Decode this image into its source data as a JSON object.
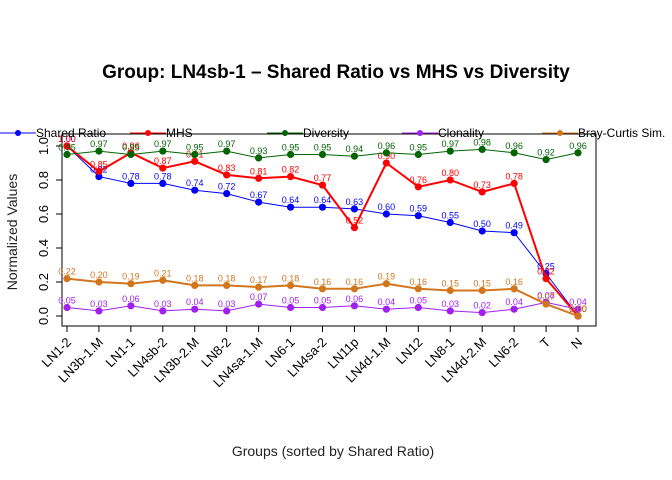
{
  "chart_data": {
    "type": "line",
    "title": "Group: LN4sb-1 – Shared Ratio vs MHS vs Diversity",
    "xlabel": "Groups (sorted by Shared Ratio)",
    "ylabel": "Normalized Values",
    "ylim": [
      0,
      1
    ],
    "yticks": [
      "0.0",
      "0.2",
      "0.4",
      "0.6",
      "0.8",
      "1.0"
    ],
    "legend_position": "top",
    "categories": [
      "LN1-2",
      "LN3b-1.M",
      "LN1-1",
      "LN4sb-2",
      "LN3b-2.M",
      "LN8-2",
      "LN4sa-1.M",
      "LN6-1",
      "LN4sa-2",
      "LN11p",
      "LN4d-1.M",
      "LN12",
      "LN8-1",
      "LN4d-2.M",
      "LN6-2",
      "T",
      "N"
    ],
    "series": [
      {
        "name": "Shared Ratio",
        "color": "#0000ff",
        "values": [
          1.0,
          0.82,
          0.78,
          0.78,
          0.74,
          0.72,
          0.67,
          0.64,
          0.64,
          0.63,
          0.6,
          0.59,
          0.55,
          0.5,
          0.49,
          0.25,
          0.0
        ],
        "labels": [
          "1.00",
          "0.82",
          "0.78",
          "0.78",
          "0.74",
          "0.72",
          "0.67",
          "0.64",
          "0.64",
          "0.63",
          "0.60",
          "0.59",
          "0.55",
          "0.50",
          "0.49",
          "0.25",
          "0.00"
        ]
      },
      {
        "name": "MHS",
        "color": "#ff0000",
        "values": [
          1.0,
          0.85,
          0.96,
          0.87,
          0.91,
          0.83,
          0.81,
          0.82,
          0.77,
          0.52,
          0.9,
          0.76,
          0.8,
          0.73,
          0.78,
          0.22,
          0.0
        ],
        "labels": [
          "1.00",
          "0.85",
          "0.96",
          "0.87",
          "0.91",
          "0.83",
          "0.81",
          "0.82",
          "0.77",
          "0.52",
          "0.90",
          "0.76",
          "0.80",
          "0.73",
          "0.78",
          "0.22",
          "0.00"
        ]
      },
      {
        "name": "Diversity",
        "color": "#006400",
        "values": [
          0.95,
          0.97,
          0.95,
          0.97,
          0.95,
          0.97,
          0.93,
          0.95,
          0.95,
          0.94,
          0.96,
          0.95,
          0.97,
          0.98,
          0.96,
          0.92,
          0.96
        ],
        "labels": [
          "0.95",
          "0.97",
          "0.95",
          "0.97",
          "0.95",
          "0.97",
          "0.93",
          "0.95",
          "0.95",
          "0.94",
          "0.96",
          "0.95",
          "0.97",
          "0.98",
          "0.96",
          "0.92",
          "0.96"
        ]
      },
      {
        "name": "Clonality",
        "color": "#a020f0",
        "values": [
          0.05,
          0.03,
          0.06,
          0.03,
          0.04,
          0.03,
          0.07,
          0.05,
          0.05,
          0.06,
          0.04,
          0.05,
          0.03,
          0.02,
          0.04,
          0.08,
          0.04
        ],
        "labels": [
          "0.05",
          "0.03",
          "0.06",
          "0.03",
          "0.04",
          "0.03",
          "0.07",
          "0.05",
          "0.05",
          "0.06",
          "0.04",
          "0.05",
          "0.03",
          "0.02",
          "0.04",
          "0.08",
          "0.04"
        ]
      },
      {
        "name": "Bray-Curtis Sim.",
        "color": "#d2761e",
        "values": [
          0.22,
          0.2,
          0.19,
          0.21,
          0.18,
          0.18,
          0.17,
          0.18,
          0.16,
          0.16,
          0.19,
          0.16,
          0.15,
          0.15,
          0.16,
          0.07,
          0.0
        ],
        "labels": [
          "0.22",
          "0.20",
          "0.19",
          "0.21",
          "0.18",
          "0.18",
          "0.17",
          "0.18",
          "0.16",
          "0.16",
          "0.19",
          "0.16",
          "0.15",
          "0.15",
          "0.16",
          "0.07",
          "0.00"
        ]
      }
    ]
  }
}
